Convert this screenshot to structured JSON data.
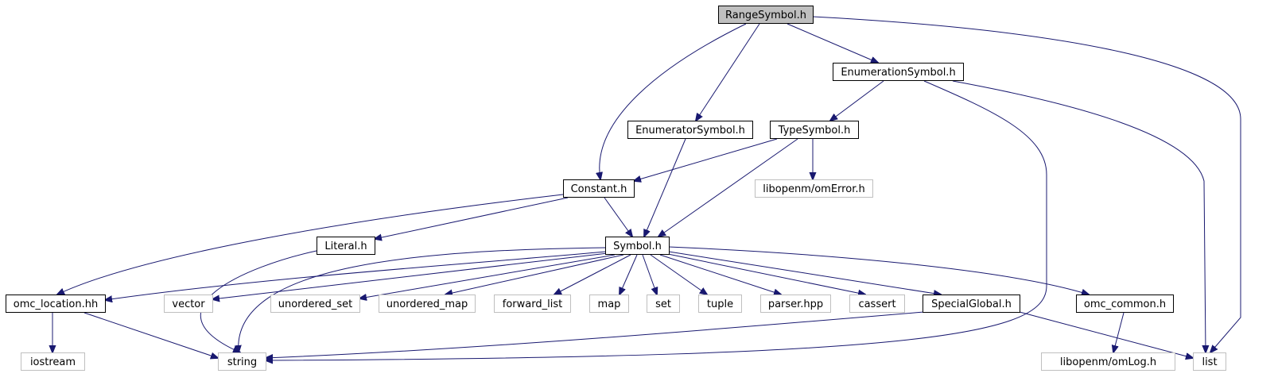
{
  "diagram": {
    "type": "include-dependency-graph",
    "colors": {
      "edge": "#191970",
      "root_fill": "#bfbfbf",
      "node_border": "#000000",
      "external_border": "#bfbfbf",
      "node_fill": "#ffffff"
    },
    "nodes": [
      {
        "id": "RangeSymbol",
        "label": "RangeSymbol.h",
        "kind": "root"
      },
      {
        "id": "EnumerationSymbol",
        "label": "EnumerationSymbol.h",
        "kind": "internal"
      },
      {
        "id": "EnumeratorSymbol",
        "label": "EnumeratorSymbol.h",
        "kind": "internal"
      },
      {
        "id": "TypeSymbol",
        "label": "TypeSymbol.h",
        "kind": "internal"
      },
      {
        "id": "Constant",
        "label": "Constant.h",
        "kind": "internal"
      },
      {
        "id": "omError",
        "label": "libopenm/omError.h",
        "kind": "external"
      },
      {
        "id": "Literal",
        "label": "Literal.h",
        "kind": "internal"
      },
      {
        "id": "Symbol",
        "label": "Symbol.h",
        "kind": "internal"
      },
      {
        "id": "omc_location",
        "label": "omc_location.hh",
        "kind": "internal"
      },
      {
        "id": "vector",
        "label": "vector",
        "kind": "external"
      },
      {
        "id": "unordered_set",
        "label": "unordered_set",
        "kind": "external"
      },
      {
        "id": "unordered_map",
        "label": "unordered_map",
        "kind": "external"
      },
      {
        "id": "forward_list",
        "label": "forward_list",
        "kind": "external"
      },
      {
        "id": "map",
        "label": "map",
        "kind": "external"
      },
      {
        "id": "set",
        "label": "set",
        "kind": "external"
      },
      {
        "id": "tuple",
        "label": "tuple",
        "kind": "external"
      },
      {
        "id": "parser",
        "label": "parser.hpp",
        "kind": "external"
      },
      {
        "id": "cassert",
        "label": "cassert",
        "kind": "external"
      },
      {
        "id": "SpecialGlobal",
        "label": "SpecialGlobal.h",
        "kind": "internal"
      },
      {
        "id": "omc_common",
        "label": "omc_common.h",
        "kind": "internal"
      },
      {
        "id": "iostream",
        "label": "iostream",
        "kind": "external"
      },
      {
        "id": "string",
        "label": "string",
        "kind": "external"
      },
      {
        "id": "omLog",
        "label": "libopenm/omLog.h",
        "kind": "external"
      },
      {
        "id": "list",
        "label": "list",
        "kind": "external"
      }
    ],
    "edges": [
      {
        "from": "RangeSymbol",
        "to": "EnumerationSymbol"
      },
      {
        "from": "RangeSymbol",
        "to": "EnumeratorSymbol"
      },
      {
        "from": "RangeSymbol",
        "to": "Constant"
      },
      {
        "from": "RangeSymbol",
        "to": "list"
      },
      {
        "from": "EnumerationSymbol",
        "to": "TypeSymbol"
      },
      {
        "from": "EnumerationSymbol",
        "to": "string"
      },
      {
        "from": "EnumerationSymbol",
        "to": "list"
      },
      {
        "from": "EnumeratorSymbol",
        "to": "Symbol"
      },
      {
        "from": "TypeSymbol",
        "to": "Constant"
      },
      {
        "from": "TypeSymbol",
        "to": "omError"
      },
      {
        "from": "TypeSymbol",
        "to": "Symbol"
      },
      {
        "from": "Constant",
        "to": "Symbol"
      },
      {
        "from": "Constant",
        "to": "Literal"
      },
      {
        "from": "Constant",
        "to": "omc_location"
      },
      {
        "from": "Literal",
        "to": "string"
      },
      {
        "from": "Symbol",
        "to": "omc_location"
      },
      {
        "from": "Symbol",
        "to": "vector"
      },
      {
        "from": "Symbol",
        "to": "unordered_set"
      },
      {
        "from": "Symbol",
        "to": "unordered_map"
      },
      {
        "from": "Symbol",
        "to": "forward_list"
      },
      {
        "from": "Symbol",
        "to": "map"
      },
      {
        "from": "Symbol",
        "to": "set"
      },
      {
        "from": "Symbol",
        "to": "tuple"
      },
      {
        "from": "Symbol",
        "to": "parser"
      },
      {
        "from": "Symbol",
        "to": "cassert"
      },
      {
        "from": "Symbol",
        "to": "SpecialGlobal"
      },
      {
        "from": "Symbol",
        "to": "omc_common"
      },
      {
        "from": "Symbol",
        "to": "string"
      },
      {
        "from": "omc_location",
        "to": "iostream"
      },
      {
        "from": "omc_location",
        "to": "string"
      },
      {
        "from": "SpecialGlobal",
        "to": "string"
      },
      {
        "from": "SpecialGlobal",
        "to": "list"
      },
      {
        "from": "omc_common",
        "to": "omLog"
      }
    ]
  }
}
